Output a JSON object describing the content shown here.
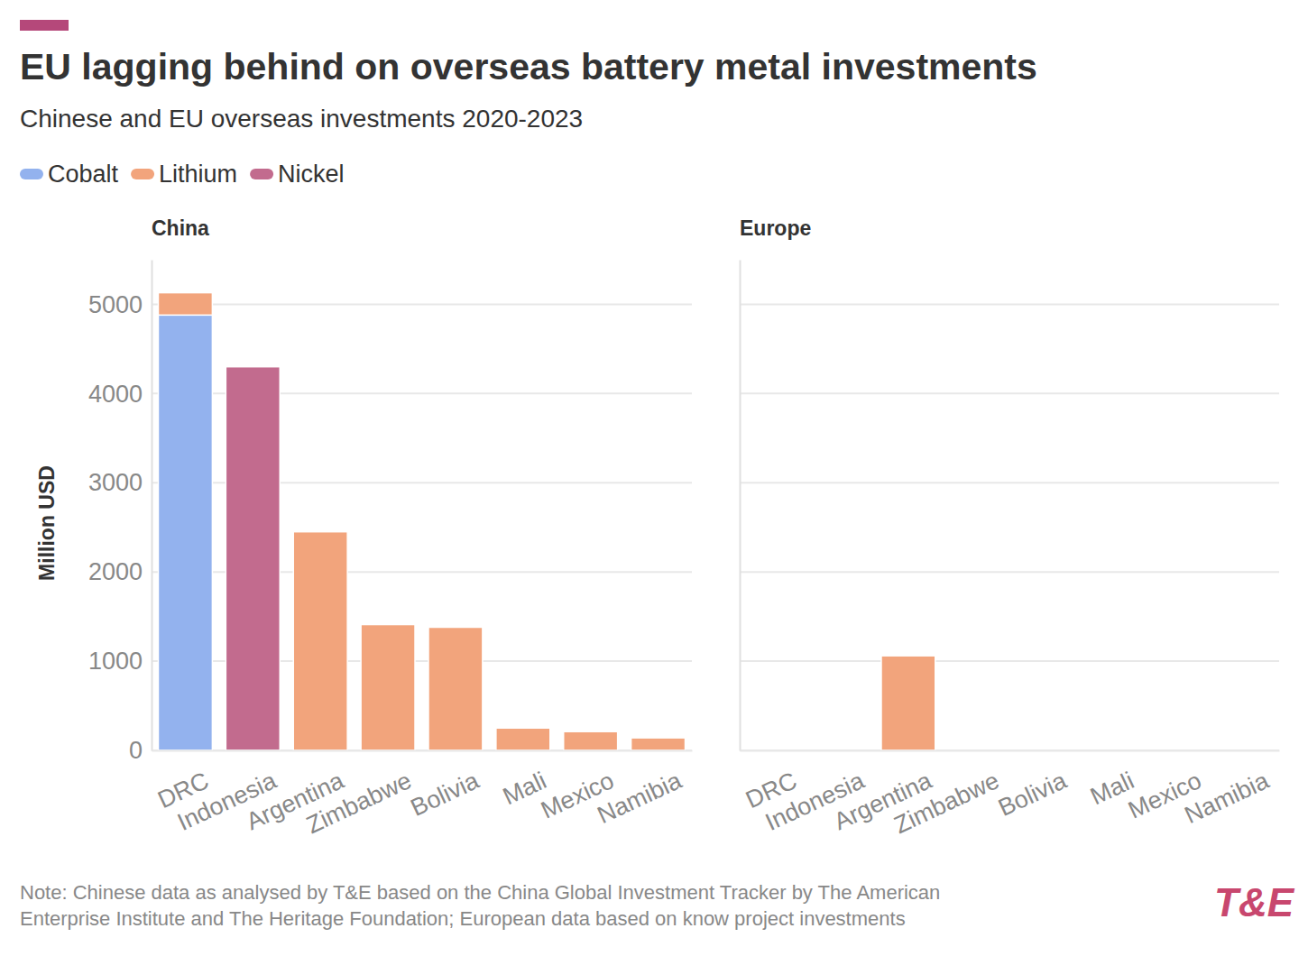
{
  "chart_data": [
    {
      "type": "bar",
      "stacked": true,
      "title": "EU lagging behind on overseas battery metal investments",
      "subtitle": "Chinese and EU overseas investments 2020-2023",
      "panel_title": "China",
      "y_label": "Million USD",
      "categories": [
        "DRC",
        "Indonesia",
        "Argentina",
        "Zimbabwe",
        "Bolivia",
        "Mali",
        "Mexico",
        "Namibia"
      ],
      "series": [
        {
          "name": "Cobalt",
          "color": "#93b2ee",
          "values": [
            4880,
            0,
            0,
            0,
            0,
            0,
            0,
            0
          ]
        },
        {
          "name": "Lithium",
          "color": "#f2a47c",
          "values": [
            250,
            0,
            2450,
            1410,
            1380,
            250,
            210,
            140
          ]
        },
        {
          "name": "Nickel",
          "color": "#c26b8e",
          "values": [
            0,
            4300,
            0,
            0,
            0,
            0,
            0,
            0
          ]
        }
      ],
      "ylim": [
        0,
        5500
      ],
      "yticks": [
        0,
        1000,
        2000,
        3000,
        4000,
        5000
      ],
      "grid": true,
      "legend": "top-left",
      "note": [
        "Note: Chinese data as analysed by T&E based on the China Global Investment Tracker by The American",
        "Enterprise Institute and The Heritage Foundation; European data based on know project investments"
      ],
      "logo": "T&E"
    },
    {
      "type": "bar",
      "stacked": true,
      "panel_title": "Europe",
      "categories": [
        "DRC",
        "Indonesia",
        "Argentina",
        "Zimbabwe",
        "Bolivia",
        "Mali",
        "Mexico",
        "Namibia"
      ],
      "series": [
        {
          "name": "Cobalt",
          "color": "#93b2ee",
          "values": [
            0,
            0,
            0,
            0,
            0,
            0,
            0,
            0
          ]
        },
        {
          "name": "Lithium",
          "color": "#f2a47c",
          "values": [
            0,
            0,
            1060,
            0,
            0,
            0,
            0,
            0
          ]
        },
        {
          "name": "Nickel",
          "color": "#c26b8e",
          "values": [
            0,
            0,
            0,
            0,
            0,
            0,
            0,
            0
          ]
        }
      ],
      "ylim": [
        0,
        5500
      ],
      "yticks": [
        0,
        1000,
        2000,
        3000,
        4000,
        5000
      ],
      "grid": true,
      "tick_labels": "x"
    }
  ]
}
